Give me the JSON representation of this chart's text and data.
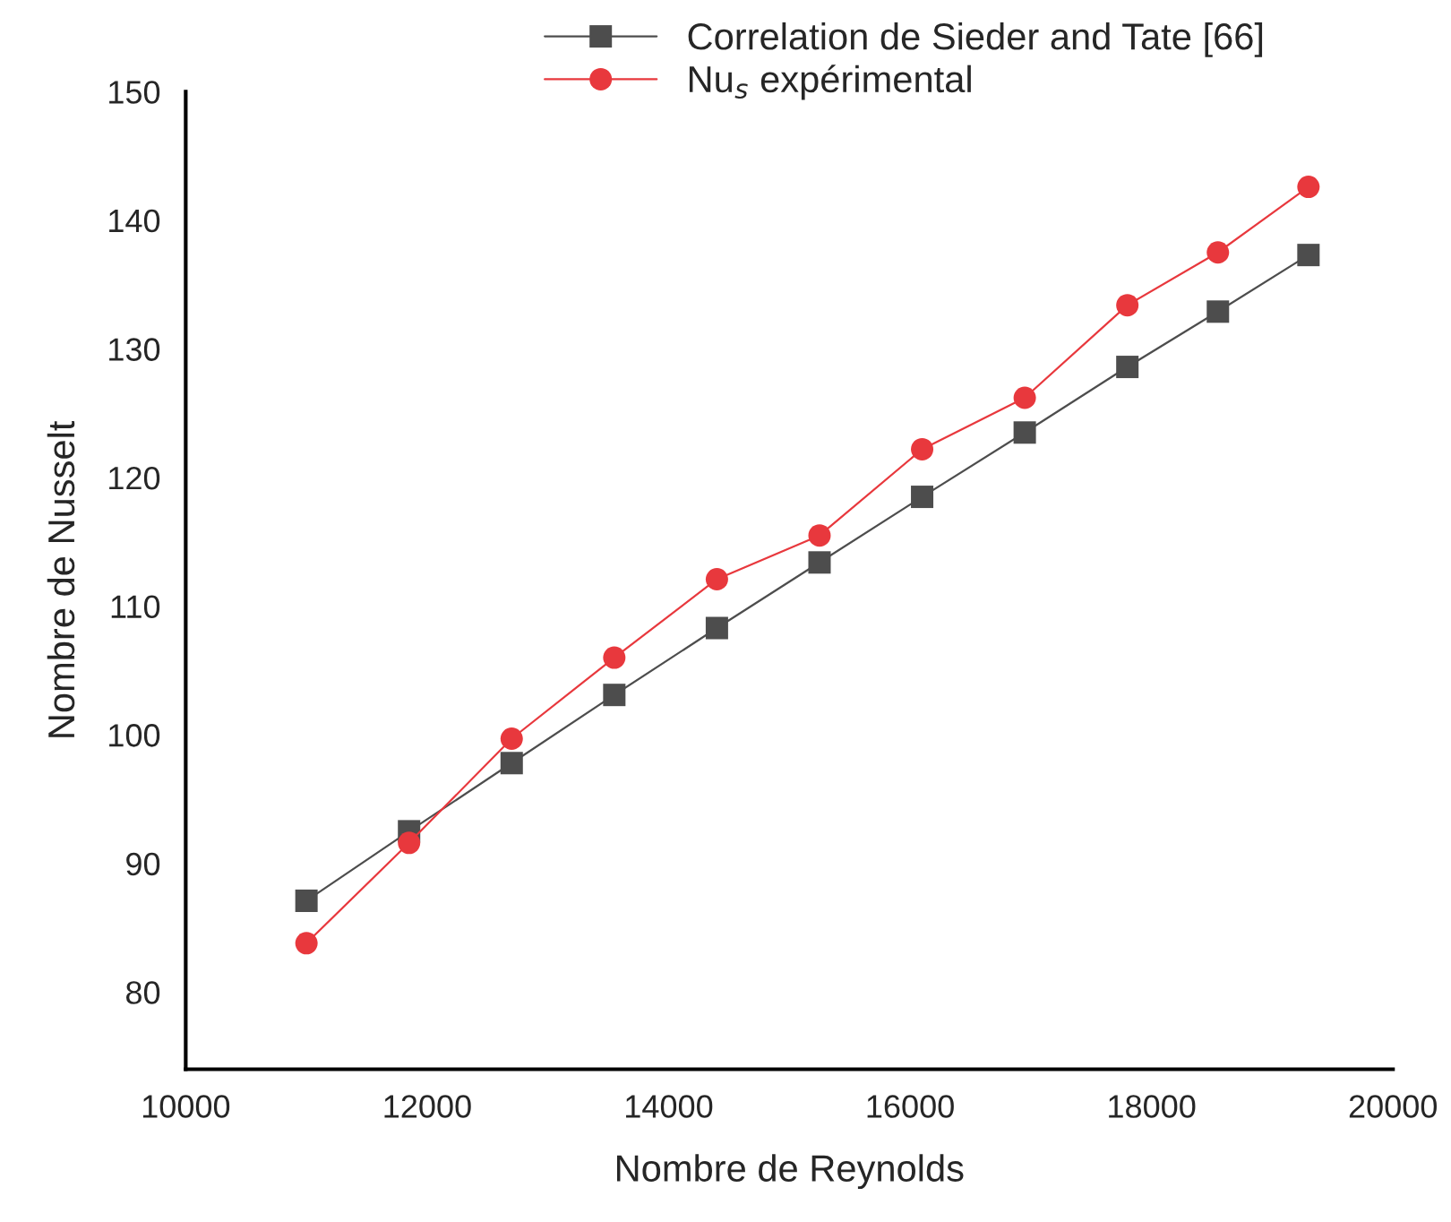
{
  "chart_data": {
    "type": "line",
    "xlabel": "Nombre de Reynolds",
    "ylabel": "Nombre de Nusselt",
    "x": [
      11000,
      11850,
      12700,
      13550,
      14400,
      15250,
      16100,
      16950,
      17800,
      18550,
      19300
    ],
    "series": [
      {
        "name": "Correlation de Sieder and Tate [66]",
        "color": "#4d4d4d",
        "marker": "square",
        "values": [
          87.1,
          92.5,
          97.8,
          103.1,
          108.3,
          113.4,
          118.5,
          123.5,
          128.6,
          132.9,
          137.3
        ]
      },
      {
        "name": "Nu$_{s}$ expérimental",
        "color": "#e8383d",
        "marker": "circle",
        "values": [
          83.8,
          91.6,
          99.7,
          106.0,
          112.1,
          115.5,
          122.2,
          126.2,
          133.4,
          137.5,
          142.6
        ]
      }
    ],
    "xlim": [
      10000,
      20000
    ],
    "xticks": [
      10000,
      12000,
      14000,
      16000,
      18000,
      20000
    ],
    "ylim": [
      74,
      150
    ],
    "yticks": [
      80,
      90,
      100,
      110,
      120,
      130,
      140,
      150
    ],
    "grid": false,
    "legend": "top",
    "line_style": "solid"
  }
}
